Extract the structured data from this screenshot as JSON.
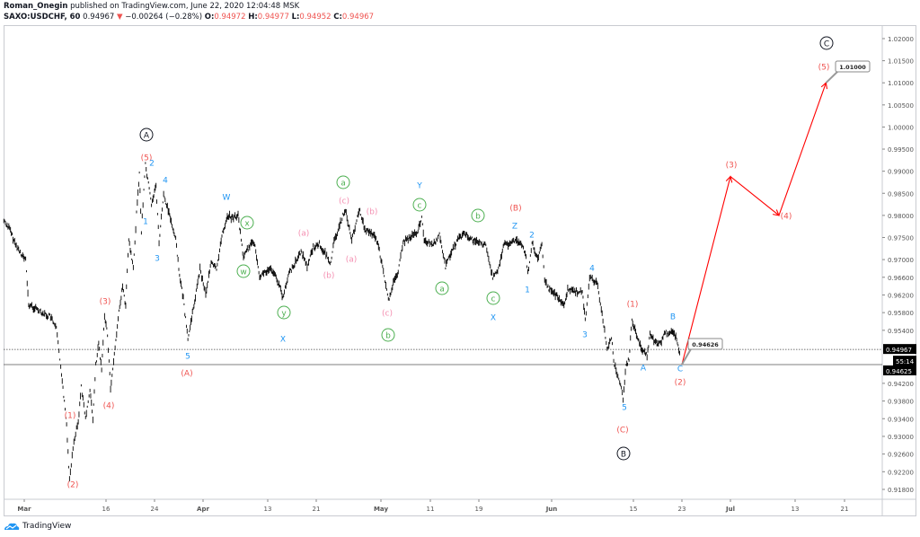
{
  "header": {
    "author": "Roman_Onegin",
    "published_text": "published on TradingView.com, June 22, 2020 12:04:48 MSK",
    "symbol": "SAXO:USDCHF, 60",
    "last": "0.94967",
    "change": "−0.00264 (−0.28%)",
    "open_label": "O:",
    "open": "0.94972",
    "high_label": "H:",
    "high": "0.94977",
    "low_label": "L:",
    "low": "0.94952",
    "close_label": "C:",
    "close": "0.94967"
  },
  "footer": {
    "logo_text": "TradingView"
  },
  "colors": {
    "red": "#ef5350",
    "blue": "#2196f3",
    "green": "#4caf50",
    "pink": "#f48fb1",
    "forecast": "#ff0000",
    "candles": "#000000"
  },
  "chart_data": {
    "type": "line",
    "symbol": "SAXO:USDCHF",
    "interval": "60",
    "ylim": [
      0.918,
      1.02
    ],
    "y_ticks": [
      "1.02000",
      "1.01500",
      "1.01000",
      "1.00500",
      "1.00000",
      "0.99500",
      "0.99000",
      "0.98500",
      "0.98000",
      "0.97500",
      "0.97000",
      "0.96600",
      "0.96200",
      "0.95800",
      "0.95400",
      "0.94200",
      "0.93800",
      "0.93400",
      "0.93000",
      "0.92600",
      "0.92200",
      "0.91800"
    ],
    "x_ticks": [
      "Mar",
      "16",
      "24",
      "Apr",
      "13",
      "21",
      "May",
      "11",
      "19",
      "Jun",
      "15",
      "23",
      "Jul",
      "13",
      "21"
    ],
    "current_price": "0.94967",
    "countdown": "55:14",
    "level_price": "0.94625",
    "target_label": "1.01000",
    "callout_label": "0.94626",
    "price": [
      [
        "2020-02-27",
        0.9788
      ],
      [
        "2020-02-28",
        0.9769
      ],
      [
        "2020-02-29",
        0.9733
      ],
      [
        "2020-03-02",
        0.9698
      ],
      [
        "2020-03-02",
        0.9597
      ],
      [
        "2020-03-04",
        0.9586
      ],
      [
        "2020-03-05",
        0.9576
      ],
      [
        "2020-03-06",
        0.957
      ],
      [
        "2020-03-07",
        0.9542
      ],
      [
        "2020-03-08",
        0.946
      ],
      [
        "2020-03-08",
        0.9393
      ],
      [
        "2020-03-09",
        0.9326
      ],
      [
        "2020-03-09",
        0.9204
      ],
      [
        "2020-03-10",
        0.9292
      ],
      [
        "2020-03-11",
        0.9332
      ],
      [
        "2020-03-11",
        0.9414
      ],
      [
        "2020-03-12",
        0.9338
      ],
      [
        "2020-03-13",
        0.9408
      ],
      [
        "2020-03-13",
        0.9338
      ],
      [
        "2020-03-14",
        0.946
      ],
      [
        "2020-03-14",
        0.9509
      ],
      [
        "2020-03-15",
        0.9448
      ],
      [
        "2020-03-15",
        0.9576
      ],
      [
        "2020-03-16",
        0.953
      ],
      [
        "2020-03-16",
        0.9408
      ],
      [
        "2020-03-17",
        0.9501
      ],
      [
        "2020-03-18",
        0.9597
      ],
      [
        "2020-03-18",
        0.9637
      ],
      [
        "2020-03-19",
        0.9597
      ],
      [
        "2020-03-19",
        0.9745
      ],
      [
        "2020-03-20",
        0.9678
      ],
      [
        "2020-03-21",
        0.9834
      ],
      [
        "2020-03-21",
        0.9895
      ],
      [
        "2020-03-21",
        0.9765
      ],
      [
        "2020-03-22",
        0.9916
      ],
      [
        "2020-03-23",
        0.9826
      ],
      [
        "2020-03-24",
        0.9867
      ],
      [
        "2020-03-24",
        0.9739
      ],
      [
        "2020-03-25",
        0.9847
      ],
      [
        "2020-03-26",
        0.98
      ],
      [
        "2020-03-27",
        0.9745
      ],
      [
        "2020-03-28",
        0.9651
      ],
      [
        "2020-03-28",
        0.9611
      ],
      [
        "2020-03-29",
        0.9519
      ],
      [
        "2020-03-30",
        0.9597
      ],
      [
        "2020-03-31",
        0.9678
      ],
      [
        "2020-04-01",
        0.9623
      ],
      [
        "2020-04-02",
        0.9692
      ],
      [
        "2020-04-03",
        0.9678
      ],
      [
        "2020-04-04",
        0.9753
      ],
      [
        "2020-04-05",
        0.98
      ],
      [
        "2020-04-06",
        0.9794
      ],
      [
        "2020-04-07",
        0.98
      ],
      [
        "2020-04-08",
        0.9704
      ],
      [
        "2020-04-09",
        0.9729
      ],
      [
        "2020-04-10",
        0.9739
      ],
      [
        "2020-04-11",
        0.9664
      ],
      [
        "2020-04-13",
        0.9678
      ],
      [
        "2020-04-14",
        0.9658
      ],
      [
        "2020-04-15",
        0.9613
      ],
      [
        "2020-04-16",
        0.9668
      ],
      [
        "2020-04-18",
        0.9719
      ],
      [
        "2020-04-19",
        0.9684
      ],
      [
        "2020-04-20",
        0.9728
      ],
      [
        "2020-04-21",
        0.9735
      ],
      [
        "2020-04-23",
        0.9692
      ],
      [
        "2020-04-23",
        0.9739
      ],
      [
        "2020-04-24",
        0.9773
      ],
      [
        "2020-04-25",
        0.9814
      ],
      [
        "2020-04-26",
        0.9743
      ],
      [
        "2020-04-27",
        0.9789
      ],
      [
        "2020-04-27",
        0.981
      ],
      [
        "2020-04-28",
        0.9769
      ],
      [
        "2020-04-29",
        0.9759
      ],
      [
        "2020-04-30",
        0.9749
      ],
      [
        "2020-04-30",
        0.9719
      ],
      [
        "2020-05-01",
        0.9672
      ],
      [
        "2020-05-02",
        0.9607
      ],
      [
        "2020-05-03",
        0.9647
      ],
      [
        "2020-05-04",
        0.9672
      ],
      [
        "2020-05-05",
        0.9739
      ],
      [
        "2020-05-07",
        0.9755
      ],
      [
        "2020-05-08",
        0.9765
      ],
      [
        "2020-05-09",
        0.9794
      ],
      [
        "2020-05-09",
        0.9745
      ],
      [
        "2020-05-11",
        0.9735
      ],
      [
        "2020-05-11",
        0.9739
      ],
      [
        "2020-05-12",
        0.9755
      ],
      [
        "2020-05-13",
        0.9684
      ],
      [
        "2020-05-14",
        0.9719
      ],
      [
        "2020-05-15",
        0.9743
      ],
      [
        "2020-05-16",
        0.9759
      ],
      [
        "2020-05-17",
        0.9749
      ],
      [
        "2020-05-18",
        0.9739
      ],
      [
        "2020-05-20",
        0.9733
      ],
      [
        "2020-05-20",
        0.9698
      ],
      [
        "2020-05-21",
        0.9662
      ],
      [
        "2020-05-22",
        0.9678
      ],
      [
        "2020-05-23",
        0.9735
      ],
      [
        "2020-05-24",
        0.9735
      ],
      [
        "2020-05-25",
        0.9745
      ],
      [
        "2020-05-26",
        0.9733
      ],
      [
        "2020-05-27",
        0.9719
      ],
      [
        "2020-05-27",
        0.9668
      ],
      [
        "2020-05-28",
        0.9739
      ],
      [
        "2020-05-29",
        0.9698
      ],
      [
        "2020-05-30",
        0.9735
      ],
      [
        "2020-05-30",
        0.9651
      ],
      [
        "2020-05-31",
        0.9633
      ],
      [
        "2020-06-01",
        0.9623
      ],
      [
        "2020-06-03",
        0.9597
      ],
      [
        "2020-06-03",
        0.9633
      ],
      [
        "2020-06-05",
        0.9627
      ],
      [
        "2020-06-06",
        0.9627
      ],
      [
        "2020-06-06",
        0.9562
      ],
      [
        "2020-06-07",
        0.9658
      ],
      [
        "2020-06-08",
        0.9651
      ],
      [
        "2020-06-08",
        0.9647
      ],
      [
        "2020-06-09",
        0.9591
      ],
      [
        "2020-06-10",
        0.9501
      ],
      [
        "2020-06-11",
        0.9521
      ],
      [
        "2020-06-11",
        0.946
      ],
      [
        "2020-06-12",
        0.9434
      ],
      [
        "2020-06-13",
        0.9387
      ],
      [
        "2020-06-13",
        0.946
      ],
      [
        "2020-06-14",
        0.9475
      ],
      [
        "2020-06-14",
        0.9562
      ],
      [
        "2020-06-15",
        0.953
      ],
      [
        "2020-06-16",
        0.9495
      ],
      [
        "2020-06-17",
        0.9481
      ],
      [
        "2020-06-17",
        0.953
      ],
      [
        "2020-06-18",
        0.9515
      ],
      [
        "2020-06-19",
        0.9509
      ],
      [
        "2020-06-20",
        0.9536
      ],
      [
        "2020-06-20",
        0.9532
      ],
      [
        "2020-06-21",
        0.954
      ],
      [
        "2020-06-22",
        0.9515
      ],
      [
        "2020-06-22",
        0.9479
      ]
    ],
    "forecast_path": [
      [
        "2020-06-23",
        0.94626
      ],
      [
        "2020-07-01",
        0.9888
      ],
      [
        "2020-07-10",
        0.98
      ],
      [
        "2020-07-18",
        1.01
      ]
    ],
    "annotations": {
      "black": [
        "A",
        "B",
        "C"
      ],
      "red": [
        "(5)",
        "(3)",
        "(4)",
        "(1)",
        "(2)",
        "(A)",
        "(B)",
        "(C)",
        "(1)",
        "(2)",
        "(3)",
        "(4)",
        "(5)"
      ],
      "blue": [
        "2",
        "4",
        "1",
        "3",
        "5",
        "W",
        "X",
        "Y",
        "Z",
        "2",
        "1",
        "X",
        "4",
        "3",
        "5",
        "A",
        "B",
        "C"
      ],
      "green": [
        "x",
        "w",
        "y",
        "a",
        "c",
        "b",
        "a",
        "c",
        "b"
      ],
      "pink": [
        "(a)",
        "(c)",
        "(b)",
        "(a)",
        "(b)",
        "(c)"
      ]
    }
  }
}
